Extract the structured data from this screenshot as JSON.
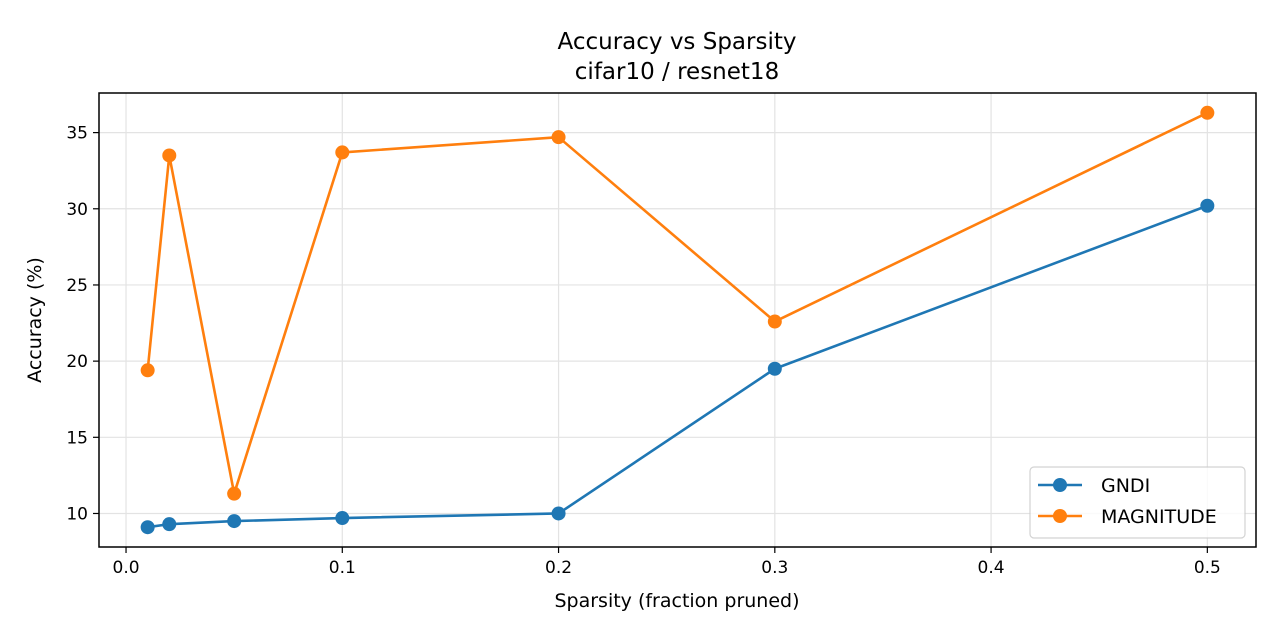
{
  "chart_data": {
    "type": "line",
    "title": "Accuracy vs Sparsity",
    "subtitle": "cifar10 / resnet18",
    "xlabel": "Sparsity (fraction pruned)",
    "ylabel": "Accuracy (%)",
    "xlim": [
      -0.0125,
      0.5225
    ],
    "ylim": [
      7.8,
      37.6
    ],
    "xticks": [
      0.0,
      0.1,
      0.2,
      0.3,
      0.4,
      0.5
    ],
    "xtick_labels": [
      "0.0",
      "0.1",
      "0.2",
      "0.3",
      "0.4",
      "0.5"
    ],
    "yticks": [
      10,
      15,
      20,
      25,
      30,
      35
    ],
    "ytick_labels": [
      "10",
      "15",
      "20",
      "25",
      "30",
      "35"
    ],
    "grid": true,
    "legend_position": "bottom-right",
    "series": [
      {
        "name": "GNDI",
        "color": "#1f77b4",
        "x": [
          0.01,
          0.02,
          0.05,
          0.1,
          0.2,
          0.3,
          0.5
        ],
        "y": [
          9.1,
          9.3,
          9.5,
          9.7,
          10.0,
          19.5,
          30.2
        ]
      },
      {
        "name": "MAGNITUDE",
        "color": "#ff7f0e",
        "x": [
          0.01,
          0.02,
          0.05,
          0.1,
          0.2,
          0.3,
          0.5
        ],
        "y": [
          19.4,
          33.5,
          11.3,
          33.7,
          34.7,
          22.6,
          36.3
        ]
      }
    ]
  }
}
